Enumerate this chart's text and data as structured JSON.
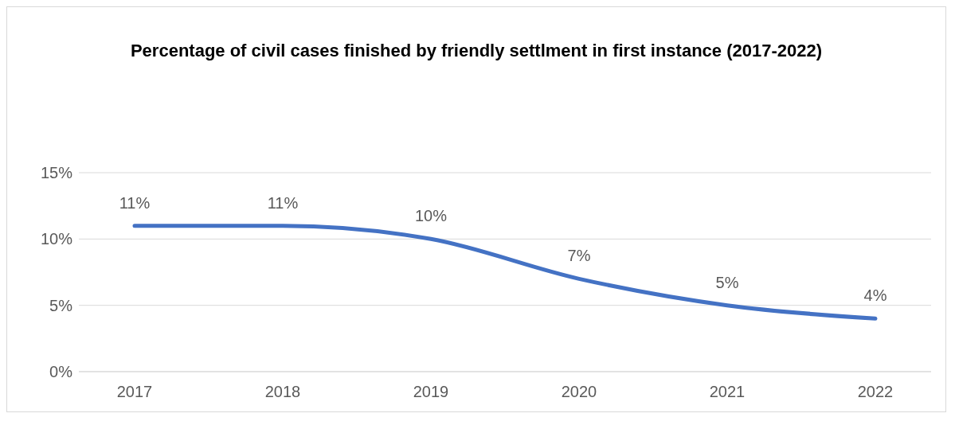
{
  "chart_data": {
    "type": "line",
    "title": "Percentage of civil cases finished by friendly settlment in first instance (2017-2022)",
    "categories": [
      "2017",
      "2018",
      "2019",
      "2020",
      "2021",
      "2022"
    ],
    "series": [
      {
        "color": "#4472c4",
        "values": [
          11,
          11,
          10,
          7,
          5,
          4
        ],
        "value_labels": [
          "11%",
          "11%",
          "10%",
          "7%",
          "5%",
          "4%"
        ]
      }
    ],
    "ylim": [
      0,
      15
    ],
    "yticks": [
      {
        "value": 0,
        "label": "0%"
      },
      {
        "value": 5,
        "label": "5%"
      },
      {
        "value": 10,
        "label": "10%"
      },
      {
        "value": 15,
        "label": "15%"
      }
    ],
    "grid": "y",
    "legend": false,
    "marker": "none",
    "line_style": "solid"
  }
}
